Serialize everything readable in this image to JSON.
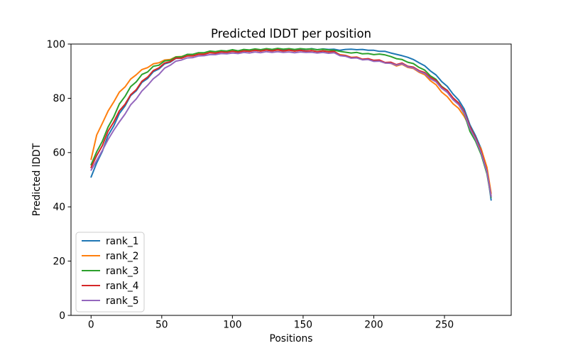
{
  "chart_data": {
    "type": "line",
    "title": "Predicted lDDT per position",
    "xlabel": "Positions",
    "ylabel": "Predicted lDDT",
    "xlim": [
      -14.2,
      297.2
    ],
    "ylim": [
      0,
      100
    ],
    "x_ticks": [
      0,
      50,
      100,
      150,
      200,
      250
    ],
    "y_ticks": [
      0,
      20,
      40,
      60,
      80,
      100
    ],
    "grid": false,
    "legend_position": "lower left",
    "x": [
      0,
      4,
      8,
      12,
      16,
      20,
      24,
      28,
      32,
      36,
      40,
      44,
      48,
      52,
      56,
      60,
      64,
      68,
      72,
      76,
      80,
      84,
      88,
      92,
      96,
      100,
      104,
      108,
      112,
      116,
      120,
      124,
      128,
      132,
      136,
      140,
      144,
      148,
      152,
      156,
      160,
      164,
      168,
      172,
      176,
      180,
      184,
      188,
      192,
      196,
      200,
      204,
      208,
      212,
      216,
      220,
      224,
      228,
      232,
      236,
      240,
      244,
      248,
      252,
      256,
      260,
      264,
      268,
      272,
      276,
      280,
      283
    ],
    "series": [
      {
        "name": "rank_1",
        "color": "#1f77b4",
        "values": [
          51.0,
          56.2,
          60.5,
          66.3,
          69.8,
          74.4,
          77.2,
          81.0,
          82.8,
          85.9,
          87.3,
          89.8,
          90.8,
          92.7,
          93.3,
          94.7,
          94.8,
          95.7,
          95.8,
          96.4,
          96.3,
          97.0,
          96.8,
          97.4,
          97.2,
          97.7,
          97.4,
          97.8,
          97.6,
          98.1,
          97.8,
          98.2,
          97.9,
          98.3,
          98.0,
          98.2,
          97.9,
          98.2,
          98.0,
          98.3,
          97.9,
          98.2,
          98.0,
          98.1,
          97.7,
          98.0,
          98.1,
          97.9,
          98.0,
          97.7,
          97.7,
          97.3,
          97.3,
          96.7,
          96.2,
          95.7,
          95.1,
          94.3,
          93.1,
          92.0,
          90.1,
          88.6,
          86.2,
          84.4,
          81.6,
          79.4,
          76.0,
          70.2,
          66.2,
          61.3,
          53.8,
          42.5
        ]
      },
      {
        "name": "rank_2",
        "color": "#ff7f0e",
        "values": [
          57.5,
          66.5,
          70.8,
          75.3,
          78.6,
          82.3,
          84.2,
          87.1,
          88.7,
          90.6,
          91.3,
          92.7,
          93.1,
          94.1,
          94.3,
          95.3,
          95.4,
          96.1,
          96.1,
          96.6,
          96.5,
          97.0,
          96.8,
          97.2,
          97.0,
          97.4,
          97.1,
          97.5,
          97.3,
          97.7,
          97.4,
          97.8,
          97.5,
          97.8,
          97.4,
          97.7,
          97.4,
          97.7,
          97.3,
          97.6,
          97.2,
          97.5,
          97.1,
          97.2,
          96.1,
          95.8,
          95.1,
          95.2,
          94.4,
          94.5,
          93.8,
          93.8,
          93.0,
          92.9,
          91.9,
          92.5,
          91.4,
          91.0,
          89.6,
          88.7,
          86.5,
          85.0,
          82.3,
          80.6,
          78.0,
          76.3,
          73.3,
          69.3,
          64.7,
          61.2,
          54.6,
          45.0
        ]
      },
      {
        "name": "rank_3",
        "color": "#2ca02c",
        "values": [
          55.5,
          60.3,
          64.2,
          69.4,
          73.1,
          77.9,
          80.7,
          84.3,
          86.1,
          88.8,
          89.7,
          91.8,
          92.2,
          93.8,
          94.0,
          95.2,
          95.3,
          96.2,
          96.2,
          96.8,
          96.8,
          97.4,
          97.2,
          97.6,
          97.4,
          97.9,
          97.5,
          98.0,
          97.8,
          98.2,
          97.9,
          98.3,
          98.0,
          98.4,
          98.1,
          98.3,
          98.0,
          98.3,
          98.1,
          98.2,
          97.9,
          98.1,
          97.8,
          97.7,
          97.3,
          97.0,
          96.7,
          96.9,
          96.4,
          96.5,
          96.1,
          96.3,
          96.0,
          95.4,
          94.6,
          94.3,
          93.3,
          92.8,
          91.4,
          90.4,
          88.3,
          87.0,
          84.4,
          82.9,
          79.9,
          77.9,
          74.3,
          67.8,
          64.2,
          59.2,
          52.2,
          43.5
        ]
      },
      {
        "name": "rank_4",
        "color": "#d62728",
        "values": [
          54.5,
          58.9,
          62.6,
          67.9,
          71.2,
          75.4,
          77.8,
          81.3,
          83.2,
          86.3,
          87.8,
          90.2,
          91.2,
          93.0,
          93.5,
          94.8,
          94.8,
          95.6,
          95.6,
          96.2,
          96.2,
          96.8,
          96.6,
          97.1,
          96.9,
          97.3,
          97.0,
          97.5,
          97.3,
          97.7,
          97.4,
          97.8,
          97.5,
          97.9,
          97.5,
          97.8,
          97.4,
          97.7,
          97.4,
          97.6,
          97.2,
          97.5,
          97.2,
          97.3,
          95.9,
          95.7,
          95.0,
          95.1,
          94.4,
          94.6,
          94.0,
          94.1,
          93.2,
          93.3,
          92.4,
          93.0,
          91.8,
          91.5,
          90.2,
          89.5,
          87.7,
          86.6,
          84.2,
          82.9,
          80.2,
          78.3,
          75.0,
          69.5,
          65.5,
          60.3,
          53.2,
          44.0
        ]
      },
      {
        "name": "rank_5",
        "color": "#9467bd",
        "values": [
          53.5,
          57.1,
          60.8,
          64.8,
          68.2,
          71.3,
          74.2,
          77.6,
          79.8,
          82.7,
          84.8,
          87.2,
          88.8,
          91.1,
          92.2,
          93.7,
          94.1,
          94.9,
          95.0,
          95.6,
          95.7,
          96.1,
          96.1,
          96.5,
          96.4,
          96.7,
          96.5,
          96.9,
          96.7,
          97.1,
          96.8,
          97.2,
          96.9,
          97.2,
          96.9,
          97.1,
          96.8,
          97.1,
          96.9,
          97.0,
          96.7,
          96.9,
          96.6,
          96.8,
          95.7,
          95.5,
          94.8,
          94.9,
          94.2,
          94.3,
          93.6,
          93.7,
          93.0,
          92.9,
          92.2,
          92.7,
          91.6,
          91.2,
          89.9,
          89.1,
          87.2,
          86.1,
          83.7,
          82.2,
          79.5,
          77.7,
          74.5,
          68.8,
          64.9,
          59.8,
          52.8,
          43.8
        ]
      }
    ]
  }
}
